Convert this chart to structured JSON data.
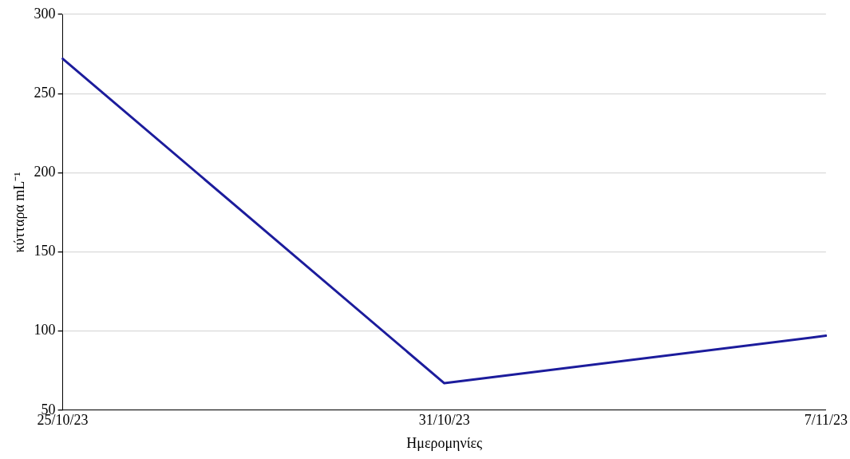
{
  "chart_data": {
    "type": "line",
    "xlabel": "Ημερομηνίες",
    "ylabel": "κύτταρα mL⁻¹",
    "categories": [
      "25/10/23",
      "31/10/23",
      "7/11/23"
    ],
    "series": [
      {
        "color": "#1c1c9c",
        "values": [
          272,
          67,
          97
        ]
      }
    ],
    "ylim": [
      50,
      300
    ],
    "yticks": [
      50,
      100,
      150,
      200,
      250,
      300
    ],
    "grid": "y",
    "legend": false,
    "marker": "none",
    "line_style": "solid"
  }
}
